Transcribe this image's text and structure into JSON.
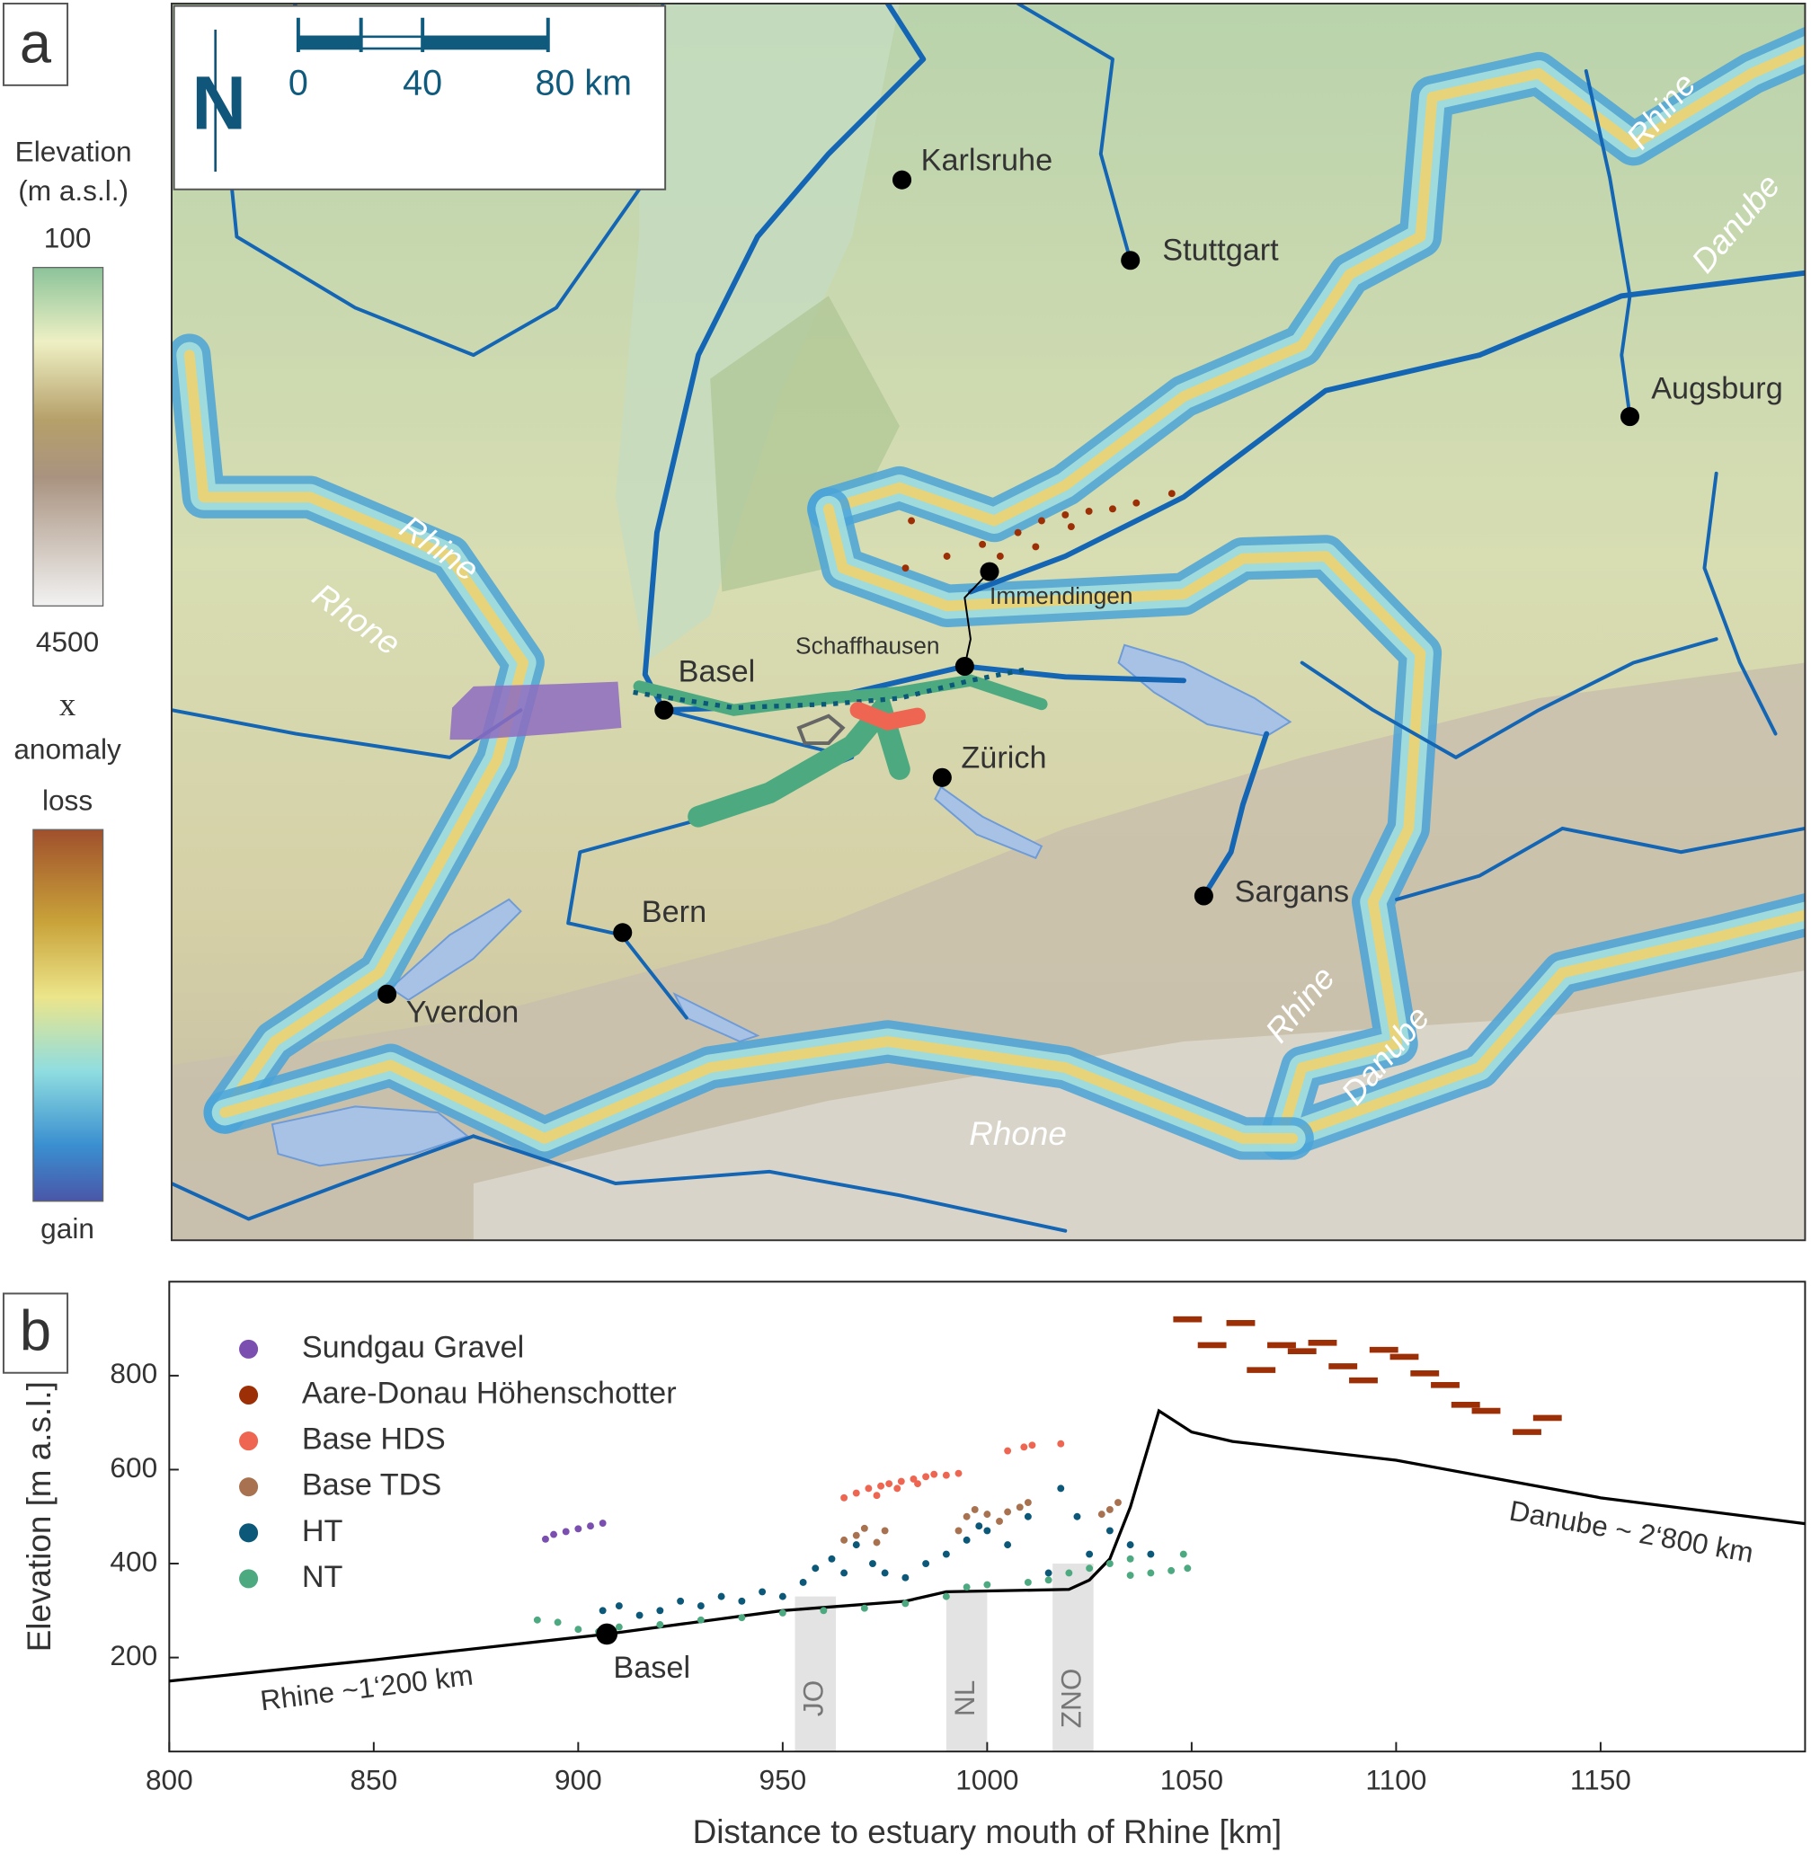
{
  "map": {
    "panel": "a",
    "scale": [
      "0",
      "40",
      "80 km"
    ],
    "legend": {
      "elevation_title": [
        "Elevation",
        "(m a.s.l.)"
      ],
      "elevation_top": "100",
      "elevation_bottom": "4500",
      "anomaly_title": [
        "x",
        "anomaly"
      ],
      "anomaly_top": "loss",
      "anomaly_bottom": "gain"
    },
    "cities": [
      "Karlsruhe",
      "Stuttgart",
      "Augsburg",
      "Immendingen",
      "Schaffhausen",
      "Basel",
      "Zürich",
      "Sargans",
      "Bern",
      "Yverdon"
    ],
    "rivers": [
      "Rhine",
      "Danube",
      "Rhine",
      "Rhone",
      "Rhine",
      "Danube",
      "Rhone"
    ]
  },
  "chart_data": {
    "type": "scatter",
    "panel_label": "b",
    "xlabel": "Distance to estuary mouth of Rhine [km]",
    "ylabel": "Elevation [m a.s.l.]",
    "xlim": [
      800,
      1200
    ],
    "ylim": [
      0,
      1000
    ],
    "xticks": [
      800,
      850,
      900,
      950,
      1000,
      1050,
      1100,
      1150
    ],
    "yticks": [
      200,
      400,
      600,
      800
    ],
    "series": [
      {
        "name": "Sundgau Gravel",
        "color": "#7b4fb0",
        "x": [
          892,
          894,
          897,
          900,
          903,
          906
        ],
        "values": [
          452,
          462,
          468,
          474,
          480,
          486
        ]
      },
      {
        "name": "Aare-Donau Höhenschotter",
        "color": "#9c2f05",
        "marker": "dash",
        "x": [
          1049,
          1062,
          1055,
          1067,
          1072,
          1077,
          1082,
          1087,
          1092,
          1097,
          1102,
          1107,
          1112,
          1117,
          1122,
          1132,
          1137
        ],
        "values": [
          920,
          912,
          865,
          812,
          865,
          852,
          870,
          820,
          790,
          855,
          840,
          805,
          780,
          738,
          725,
          680,
          710
        ]
      },
      {
        "name": "Base HDS",
        "color": "#ee6651",
        "x": [
          965,
          968,
          971,
          974,
          976,
          979,
          982,
          985,
          987,
          990,
          993,
          973,
          978,
          983,
          1005,
          1009,
          1011,
          1018
        ],
        "values": [
          540,
          550,
          560,
          565,
          570,
          575,
          580,
          585,
          590,
          588,
          592,
          545,
          560,
          570,
          640,
          648,
          652,
          655
        ]
      },
      {
        "name": "Base TDS",
        "color": "#a87250",
        "x": [
          965,
          968,
          970,
          973,
          975,
          993,
          995,
          997,
          1000,
          1003,
          1005,
          1008,
          1010,
          1030,
          1032,
          1028
        ],
        "values": [
          450,
          460,
          475,
          445,
          470,
          470,
          500,
          515,
          505,
          490,
          510,
          520,
          530,
          515,
          530,
          505
        ]
      },
      {
        "name": "HT",
        "color": "#0c5878",
        "x": [
          906,
          910,
          915,
          920,
          925,
          930,
          935,
          940,
          945,
          950,
          955,
          958,
          962,
          965,
          968,
          972,
          975,
          980,
          985,
          990,
          995,
          998,
          1000,
          1005,
          1010,
          1018,
          1022,
          1030,
          1035,
          1040,
          1025,
          1015
        ],
        "values": [
          300,
          310,
          290,
          300,
          320,
          310,
          330,
          320,
          340,
          330,
          360,
          390,
          410,
          380,
          440,
          400,
          380,
          370,
          400,
          420,
          450,
          480,
          470,
          440,
          500,
          560,
          500,
          470,
          440,
          420,
          420,
          380
        ]
      },
      {
        "name": "NT",
        "color": "#4daa80",
        "x": [
          890,
          895,
          900,
          905,
          910,
          920,
          930,
          940,
          950,
          960,
          970,
          980,
          990,
          995,
          1000,
          1010,
          1015,
          1020,
          1025,
          1030,
          1035,
          1040,
          1045,
          1049,
          1035,
          1048
        ],
        "values": [
          280,
          275,
          260,
          255,
          265,
          270,
          280,
          285,
          295,
          300,
          305,
          315,
          330,
          350,
          355,
          360,
          365,
          380,
          390,
          400,
          375,
          380,
          385,
          390,
          410,
          420
        ]
      }
    ],
    "profile": {
      "color": "#000000",
      "x": [
        800,
        850,
        907,
        950,
        980,
        990,
        1020,
        1025,
        1030,
        1035,
        1042,
        1050,
        1060,
        1100,
        1150,
        1200
      ],
      "values": [
        150,
        195,
        250,
        300,
        320,
        340,
        345,
        365,
        410,
        520,
        725,
        680,
        660,
        620,
        540,
        485
      ]
    },
    "zones": [
      {
        "label": "JO",
        "x": [
          953,
          963
        ],
        "top": 330
      },
      {
        "label": "NL",
        "x": [
          990,
          1000
        ],
        "top": 340
      },
      {
        "label": "ZNO",
        "x": [
          1016,
          1026
        ],
        "top": 400
      }
    ],
    "annotations": [
      {
        "text": "Basel",
        "x": 907,
        "y": 250
      },
      {
        "text": "Rhine ~1‘200 km"
      },
      {
        "text": "Danube ~ 2‘800 km"
      }
    ]
  }
}
